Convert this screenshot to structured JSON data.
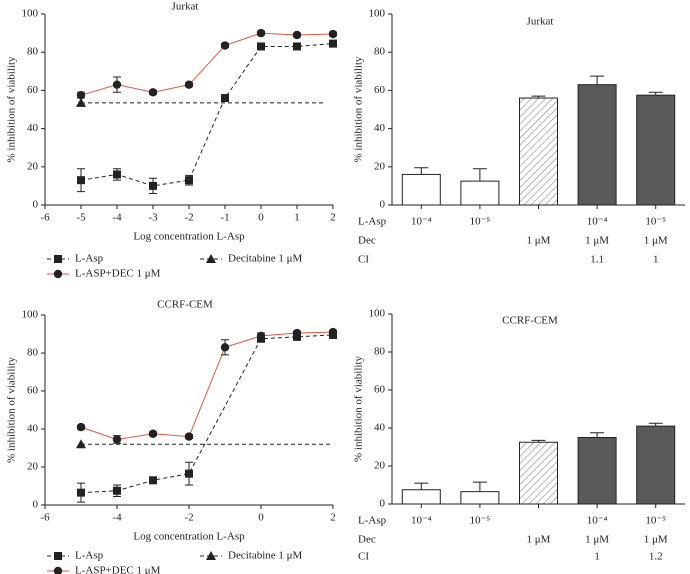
{
  "chart_data": [
    {
      "type": "line",
      "title": "Jurkat",
      "x_label": "Log concentration L-Asp",
      "y_label": "% inhibition of viability",
      "xlim": [
        -6,
        2
      ],
      "xticks": [
        -6,
        -5,
        -4,
        -3,
        -2,
        -1,
        0,
        1,
        2
      ],
      "ylim": [
        0,
        100
      ],
      "yticks": [
        0,
        20,
        40,
        60,
        80,
        100
      ],
      "series": [
        {
          "name": "L-Asp",
          "color": "#222222",
          "marker": "square",
          "dash": true,
          "x": [
            -5,
            -4,
            -3,
            -2,
            -1,
            0,
            1,
            2
          ],
          "values": [
            13,
            16,
            10,
            13,
            56,
            83,
            83,
            84.5
          ],
          "errors": [
            6,
            3,
            4,
            2.5,
            1.5,
            1,
            1,
            1
          ]
        },
        {
          "name": "L-ASP+DEC 1 μM",
          "color": "#e8553e",
          "marker": "circle",
          "marker_color": "#222222",
          "dash": false,
          "x": [
            -5,
            -4,
            -3,
            -2,
            -1,
            0,
            1,
            2
          ],
          "values": [
            57.5,
            63,
            59,
            63,
            83.5,
            90,
            89,
            89.5
          ],
          "errors": [
            1.5,
            4,
            1,
            1,
            1,
            1,
            1,
            1
          ]
        },
        {
          "name": "Decitabine 1 μM",
          "color": "#222222",
          "marker": "triangle",
          "dash": true,
          "marker_points": "first",
          "x": [
            -5,
            1.8
          ],
          "values": [
            53.5,
            53.5
          ]
        }
      ]
    },
    {
      "type": "bar",
      "title": "Jurkat",
      "y_label": "% inhibition of viability",
      "ylim": [
        0,
        100
      ],
      "yticks": [
        0,
        20,
        40,
        60,
        80,
        100
      ],
      "values": [
        16,
        12.5,
        56,
        63,
        57.5
      ],
      "errors": [
        3.5,
        6.5,
        1,
        4.5,
        1.5
      ],
      "fills": [
        "#ffffff",
        "#ffffff",
        "hatch",
        "#5a5a5a",
        "#5a5a5a"
      ],
      "table": [
        {
          "label": "L-Asp",
          "cells": [
            "10⁻⁴",
            "10⁻⁵",
            null,
            "10⁻⁴",
            "10⁻⁵"
          ]
        },
        {
          "label": "Dec",
          "cells": [
            null,
            null,
            "1 μM",
            "1 μM",
            "1 μM"
          ]
        },
        {
          "label": "CI",
          "cells": [
            null,
            null,
            null,
            "1.1",
            "1"
          ]
        }
      ]
    },
    {
      "type": "line",
      "title": "CCRF-CEM",
      "x_label": "Log concentration L-Asp",
      "y_label": "% inhibition of viability",
      "xlim": [
        -6,
        2
      ],
      "xticks": [
        -6,
        -4,
        -2,
        0,
        2
      ],
      "ylim": [
        0,
        100
      ],
      "yticks": [
        0,
        20,
        40,
        60,
        80,
        100
      ],
      "series": [
        {
          "name": "L-Asp",
          "color": "#222222",
          "marker": "square",
          "dash": true,
          "x": [
            -5,
            -4,
            -3,
            -2,
            0,
            1,
            2
          ],
          "values": [
            6.5,
            7.5,
            13,
            16.5,
            87.5,
            88.5,
            89.5
          ],
          "errors": [
            5,
            3,
            1,
            6,
            1,
            1,
            1
          ]
        },
        {
          "name": "L-ASP+DEC 1 μM",
          "color": "#e8553e",
          "marker": "circle",
          "marker_color": "#222222",
          "dash": false,
          "x": [
            -5,
            -4,
            -3,
            -2,
            -1,
            0,
            1,
            2
          ],
          "values": [
            41,
            34.5,
            37.5,
            36,
            83,
            89,
            90.5,
            91
          ],
          "errors": [
            1,
            2,
            1,
            1,
            4,
            1.5,
            1,
            1
          ]
        },
        {
          "name": "Decitabine 1 μM",
          "color": "#222222",
          "marker": "triangle",
          "dash": true,
          "marker_points": "first",
          "x": [
            -5,
            2
          ],
          "values": [
            32,
            32
          ]
        }
      ]
    },
    {
      "type": "bar",
      "title": "CCRF-CEM",
      "y_label": "% inhibition of viability",
      "ylim": [
        0,
        100
      ],
      "yticks": [
        0,
        20,
        40,
        60,
        80,
        100
      ],
      "values": [
        7.5,
        6.5,
        32.5,
        35,
        41
      ],
      "errors": [
        3.5,
        5,
        1,
        2.5,
        1.5
      ],
      "fills": [
        "#ffffff",
        "#ffffff",
        "hatch",
        "#5a5a5a",
        "#5a5a5a"
      ],
      "table": [
        {
          "label": "L-Asp",
          "cells": [
            "10⁻⁴",
            "10⁻⁵",
            null,
            "10⁻⁴",
            "10⁻⁵"
          ]
        },
        {
          "label": "Dec",
          "cells": [
            null,
            null,
            "1 μM",
            "1 μM",
            "1 μM"
          ]
        },
        {
          "label": "CI",
          "cells": [
            null,
            null,
            null,
            "1",
            "1.2"
          ]
        }
      ]
    }
  ]
}
